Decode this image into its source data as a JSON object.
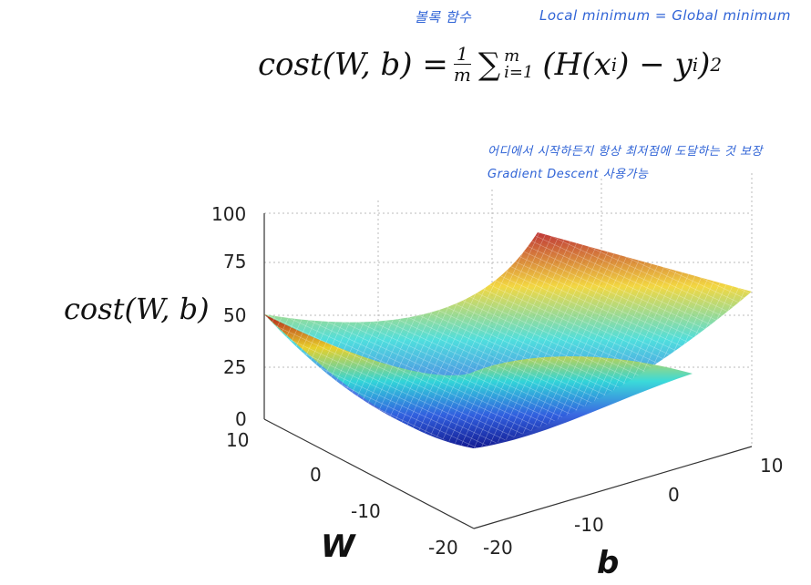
{
  "notes": {
    "convex": "볼록 함수",
    "local_global": "Local minimum = Global minimum",
    "anywhere": "어디에서 시작하든지 항상 최저점에 도달하는 것 보장",
    "gd": "Gradient Descent 사용가능"
  },
  "formula": {
    "lhs": "cost(W, b) =",
    "frac_num": "1",
    "frac_den": "m",
    "sum_symbol": "∑",
    "sum_upper": "m",
    "sum_lower": "i=1",
    "body": "(H(x",
    "sub_i": "i",
    "middle": ") − y",
    "sub_i2": "i",
    "close": ")",
    "sup": "2"
  },
  "axes": {
    "z_label": "cost(W, b)",
    "w_label": "W",
    "b_label": "b",
    "z_ticks": [
      "100",
      "75",
      "50",
      "25",
      "0"
    ],
    "w_ticks": [
      "10",
      "0",
      "-10",
      "-20"
    ],
    "b_ticks": [
      "10",
      "0",
      "-10",
      "-20"
    ]
  },
  "surface": {
    "type": "3d-mesh",
    "function": "convex bowl (paraboloid)",
    "colormap": "jet",
    "grid": true
  }
}
